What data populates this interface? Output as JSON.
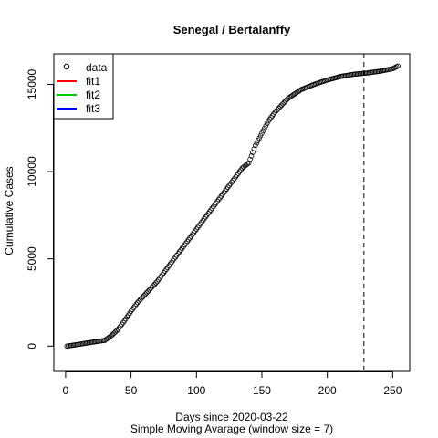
{
  "chart_data": {
    "type": "scatter",
    "title": "Senegal / Bertalanffy",
    "xlabel": "Days since 2020-03-22",
    "subtitle": "Simple Moving Avarage (window size = 7)",
    "ylabel": "Cumulative Cases",
    "xlim": [
      -9,
      263
    ],
    "ylim": [
      -1450,
      16750
    ],
    "x_ticks": [
      0,
      50,
      100,
      150,
      200,
      250
    ],
    "y_ticks": [
      0,
      5000,
      10000,
      15000
    ],
    "vline_x": 228,
    "grid": false,
    "legend_position": "top-left",
    "legend": [
      {
        "label": "data",
        "symbol": "circle",
        "color": "#000000"
      },
      {
        "label": "fit1",
        "symbol": "line",
        "color": "#ff0000"
      },
      {
        "label": "fit2",
        "symbol": "line",
        "color": "#00cd00"
      },
      {
        "label": "fit3",
        "symbol": "line",
        "color": "#0000ff"
      }
    ],
    "data_anchors": {
      "x": [
        1,
        10,
        20,
        30,
        35,
        40,
        45,
        50,
        55,
        60,
        70,
        80,
        90,
        100,
        110,
        120,
        130,
        135,
        140,
        145,
        150,
        155,
        160,
        165,
        170,
        180,
        190,
        200,
        210,
        220,
        230,
        240,
        250,
        254
      ],
      "y": [
        0,
        100,
        220,
        330,
        600,
        950,
        1450,
        2000,
        2500,
        2900,
        3700,
        4700,
        5700,
        6700,
        7700,
        8700,
        9700,
        10200,
        10500,
        11500,
        12200,
        12900,
        13400,
        13800,
        14200,
        14700,
        15000,
        15250,
        15450,
        15580,
        15650,
        15750,
        15900,
        16050
      ]
    }
  }
}
